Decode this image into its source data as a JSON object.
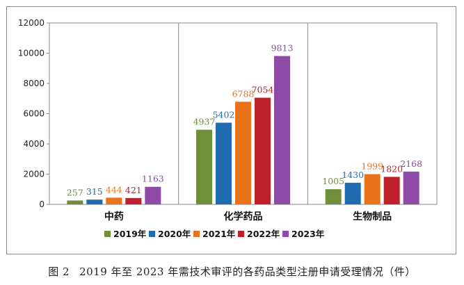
{
  "chart_data": {
    "type": "bar",
    "categories": [
      "中药",
      "化学药品",
      "生物制品"
    ],
    "series": [
      {
        "name": "2019年",
        "color": "#6f8f3a",
        "values": [
          257,
          4937,
          1005
        ]
      },
      {
        "name": "2020年",
        "color": "#1f6db0",
        "values": [
          315,
          5402,
          1430
        ]
      },
      {
        "name": "2021年",
        "color": "#e8731a",
        "values": [
          444,
          6788,
          1999
        ]
      },
      {
        "name": "2022年",
        "color": "#c0202a",
        "values": [
          421,
          7054,
          1820
        ]
      },
      {
        "name": "2023年",
        "color": "#8e4aa6",
        "values": [
          1163,
          9813,
          2168
        ]
      }
    ],
    "ylim": [
      0,
      12000
    ],
    "yticks": [
      0,
      2000,
      4000,
      6000,
      8000,
      10000,
      12000
    ],
    "title": "",
    "xlabel": "",
    "ylabel": "",
    "legend_position": "bottom-center"
  },
  "caption": {
    "number": "图 2",
    "text": "2019 年至 2023 年需技术审评的各药品类型注册申请受理情况（件）"
  }
}
